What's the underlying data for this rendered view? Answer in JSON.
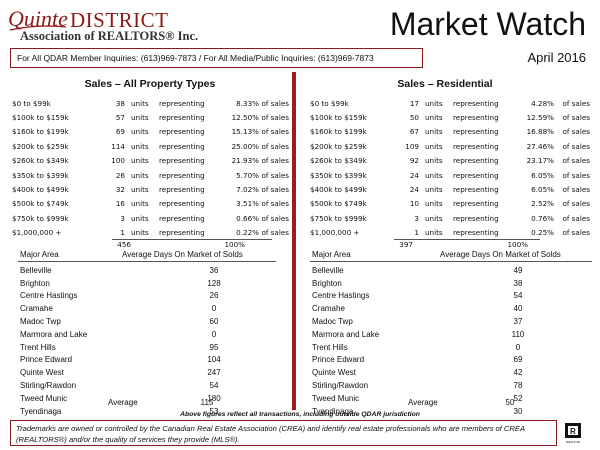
{
  "header": {
    "logo_quinte": "Quinte",
    "logo_district": "DISTRICT",
    "logo_association": "Association of REALTORS® Inc.",
    "title": "Market Watch",
    "date": "April 2016",
    "inquiries": "For All QDAR Member Inquiries: (613)969-7873 / For All Media/Public Inquiries: (613)969-7873"
  },
  "labels": {
    "units": "units",
    "representing": "representing",
    "of_sales": "of sales",
    "major_area": "Major Area",
    "avg_days": "Average Days On Market of Solds",
    "average": "Average"
  },
  "all_types": {
    "title": "Sales – All Property Types",
    "rows": [
      {
        "range": "$0 to $99k",
        "units": "38",
        "pct": "8.33%"
      },
      {
        "range": "$100k to $159k",
        "units": "57",
        "pct": "12.50%"
      },
      {
        "range": "$160k to $199k",
        "units": "69",
        "pct": "15.13%"
      },
      {
        "range": "$200k to $259k",
        "units": "114",
        "pct": "25.00%"
      },
      {
        "range": "$260k to $349k",
        "units": "100",
        "pct": "21.93%"
      },
      {
        "range": "$350k to $399k",
        "units": "26",
        "pct": "5.70%"
      },
      {
        "range": "$400k to $499k",
        "units": "32",
        "pct": "7.02%"
      },
      {
        "range": "$500k to $749k",
        "units": "16",
        "pct": "3.51%"
      },
      {
        "range": "$750k to $999k",
        "units": "3",
        "pct": "0.66%"
      },
      {
        "range": "$1,000,000 +",
        "units": "1",
        "pct": "0.22%"
      }
    ],
    "total_units": "456",
    "total_pct": "100%",
    "areas": [
      {
        "name": "Belleville",
        "days": "36"
      },
      {
        "name": "Brighton",
        "days": "128"
      },
      {
        "name": "Centre Hastings",
        "days": "26"
      },
      {
        "name": "Cramahe",
        "days": "0"
      },
      {
        "name": "Madoc Twp",
        "days": "60"
      },
      {
        "name": "Marmora and Lake",
        "days": "0"
      },
      {
        "name": "Trent Hills",
        "days": "95"
      },
      {
        "name": "Prince Edward",
        "days": "104"
      },
      {
        "name": "Quinte West",
        "days": "247"
      },
      {
        "name": "Stirling/Rawdon",
        "days": "54"
      },
      {
        "name": "Tweed Munic",
        "days": "180"
      },
      {
        "name": "Tyendinaga",
        "days": "53"
      }
    ],
    "average": "115"
  },
  "residential": {
    "title": "Sales – Residential",
    "rows": [
      {
        "range": "$0 to $99k",
        "units": "17",
        "pct": "4.28%"
      },
      {
        "range": "$100k to $159k",
        "units": "50",
        "pct": "12.59%"
      },
      {
        "range": "$160k to $199k",
        "units": "67",
        "pct": "16.88%"
      },
      {
        "range": "$200k to $259k",
        "units": "109",
        "pct": "27.46%"
      },
      {
        "range": "$260k to $349k",
        "units": "92",
        "pct": "23.17%"
      },
      {
        "range": "$350k to $399k",
        "units": "24",
        "pct": "6.05%"
      },
      {
        "range": "$400k to $499k",
        "units": "24",
        "pct": "6.05%"
      },
      {
        "range": "$500k to $749k",
        "units": "10",
        "pct": "2.52%"
      },
      {
        "range": "$750k to $999k",
        "units": "3",
        "pct": "0.76%"
      },
      {
        "range": "$1,000,000 +",
        "units": "1",
        "pct": "0.25%"
      }
    ],
    "total_units": "397",
    "total_pct": "100%",
    "areas": [
      {
        "name": "Belleville",
        "days": "49"
      },
      {
        "name": "Brighton",
        "days": "38"
      },
      {
        "name": "Centre Hastings",
        "days": "54"
      },
      {
        "name": "Cramahe",
        "days": "40"
      },
      {
        "name": "Madoc Twp",
        "days": "37"
      },
      {
        "name": "Marmora and Lake",
        "days": "110"
      },
      {
        "name": "Trent Hills",
        "days": "0"
      },
      {
        "name": "Prince Edward",
        "days": "69"
      },
      {
        "name": "Quinte West",
        "days": "42"
      },
      {
        "name": "Stirling/Rawdon",
        "days": "78"
      },
      {
        "name": "Tweed Munic",
        "days": "52"
      },
      {
        "name": "Tyendinaga",
        "days": "30"
      }
    ],
    "average": "50"
  },
  "footnote": "Above figures reflect all transactions, including outside QDAR jurisdiction",
  "disclaimer": "Trademarks are owned or controlled by the Canadian Real Estate Association (CREA) and identify real estate professionals who are members of CREA (REALTORS®) and/or the quality of services they provide (MLS®).",
  "realtor_logo_text": "REALTOR",
  "colors": {
    "accent": "#a01c1c",
    "logo": "#8b1a1a"
  }
}
